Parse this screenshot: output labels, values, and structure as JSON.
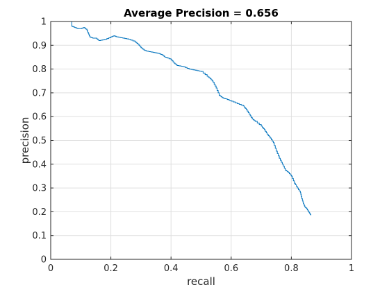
{
  "chart_data": {
    "type": "line",
    "title": "Average Precision = 0.656",
    "xlabel": "recall",
    "ylabel": "precision",
    "xlim": [
      0,
      1
    ],
    "ylim": [
      0,
      1
    ],
    "xticks": [
      0,
      0.2,
      0.4,
      0.6,
      0.8,
      1
    ],
    "xtick_labels": [
      "0",
      "0.2",
      "0.4",
      "0.6",
      "0.8",
      "1"
    ],
    "yticks": [
      0,
      0.1,
      0.2,
      0.3,
      0.4,
      0.5,
      0.6,
      0.7,
      0.8,
      0.9,
      1
    ],
    "ytick_labels": [
      "0",
      "0.1",
      "0.2",
      "0.3",
      "0.4",
      "0.5",
      "0.6",
      "0.7",
      "0.8",
      "0.9",
      "1"
    ],
    "grid": true,
    "line_color": "#0072bd",
    "series": [
      {
        "x": [
          0.0,
          0.07,
          0.07,
          0.08,
          0.09,
          0.1,
          0.11,
          0.12,
          0.125,
          0.13,
          0.14,
          0.15,
          0.16,
          0.18,
          0.2,
          0.21,
          0.22,
          0.24,
          0.26,
          0.28,
          0.29,
          0.3,
          0.31,
          0.32,
          0.34,
          0.36,
          0.37,
          0.38,
          0.4,
          0.41,
          0.42,
          0.44,
          0.46,
          0.48,
          0.5,
          0.52,
          0.53,
          0.54,
          0.55,
          0.56,
          0.57,
          0.58,
          0.6,
          0.62,
          0.64,
          0.65,
          0.66,
          0.67,
          0.68,
          0.7,
          0.71,
          0.72,
          0.73,
          0.74,
          0.75,
          0.76,
          0.77,
          0.78,
          0.79,
          0.8,
          0.81,
          0.82,
          0.83,
          0.835,
          0.84,
          0.845,
          0.85,
          0.855,
          0.86,
          0.865
        ],
        "y": [
          1.0,
          1.0,
          0.98,
          0.975,
          0.97,
          0.97,
          0.975,
          0.965,
          0.95,
          0.935,
          0.93,
          0.93,
          0.92,
          0.925,
          0.935,
          0.94,
          0.935,
          0.93,
          0.925,
          0.915,
          0.905,
          0.89,
          0.88,
          0.875,
          0.87,
          0.865,
          0.86,
          0.85,
          0.84,
          0.825,
          0.815,
          0.81,
          0.8,
          0.795,
          0.79,
          0.77,
          0.76,
          0.745,
          0.72,
          0.69,
          0.68,
          0.675,
          0.665,
          0.655,
          0.645,
          0.63,
          0.61,
          0.59,
          0.58,
          0.56,
          0.545,
          0.525,
          0.51,
          0.49,
          0.455,
          0.425,
          0.4,
          0.375,
          0.365,
          0.35,
          0.32,
          0.3,
          0.28,
          0.255,
          0.235,
          0.22,
          0.215,
          0.205,
          0.195,
          0.185
        ]
      }
    ]
  }
}
